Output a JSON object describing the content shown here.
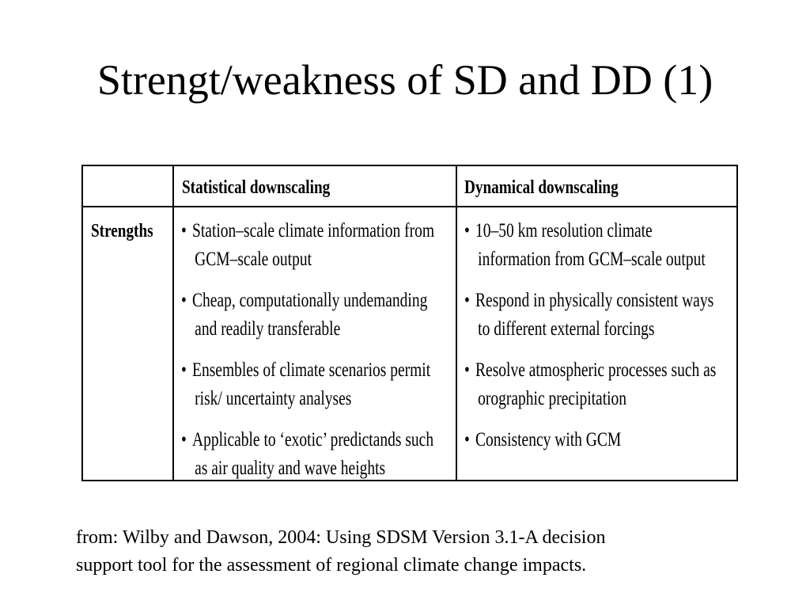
{
  "title": "Strengt/weakness of SD and DD (1)",
  "table": {
    "headers": {
      "empty": "",
      "statistical": "Statistical downscaling",
      "dynamical": "Dynamical downscaling"
    },
    "row_label": "Strengths",
    "statistical_items": [
      {
        "line1": "Station–scale climate information from",
        "line2": "GCM–scale output"
      },
      {
        "line1": "Cheap, computationally undemanding",
        "line2": "and readily transferable"
      },
      {
        "line1": "Ensembles of climate scenarios permit",
        "line2": "risk/ uncertainty analyses"
      },
      {
        "line1": "Applicable to ‘exotic’ predictands such",
        "line2": "as air quality and wave heights"
      }
    ],
    "dynamical_items": [
      {
        "line1": "10–50 km resolution climate",
        "line2": "information from GCM–scale output"
      },
      {
        "line1": "Respond in physically consistent ways",
        "line2": "to different external forcings"
      },
      {
        "line1": "Resolve atmospheric processes such as",
        "line2": "orographic precipitation"
      },
      {
        "line1": "Consistency with GCM",
        "line2": ""
      }
    ],
    "bullet": "•"
  },
  "source": {
    "line1": "from: Wilby and Dawson, 2004: Using SDSM Version 3.1-A decision",
    "line2": "support tool for the assessment of regional climate change impacts."
  }
}
